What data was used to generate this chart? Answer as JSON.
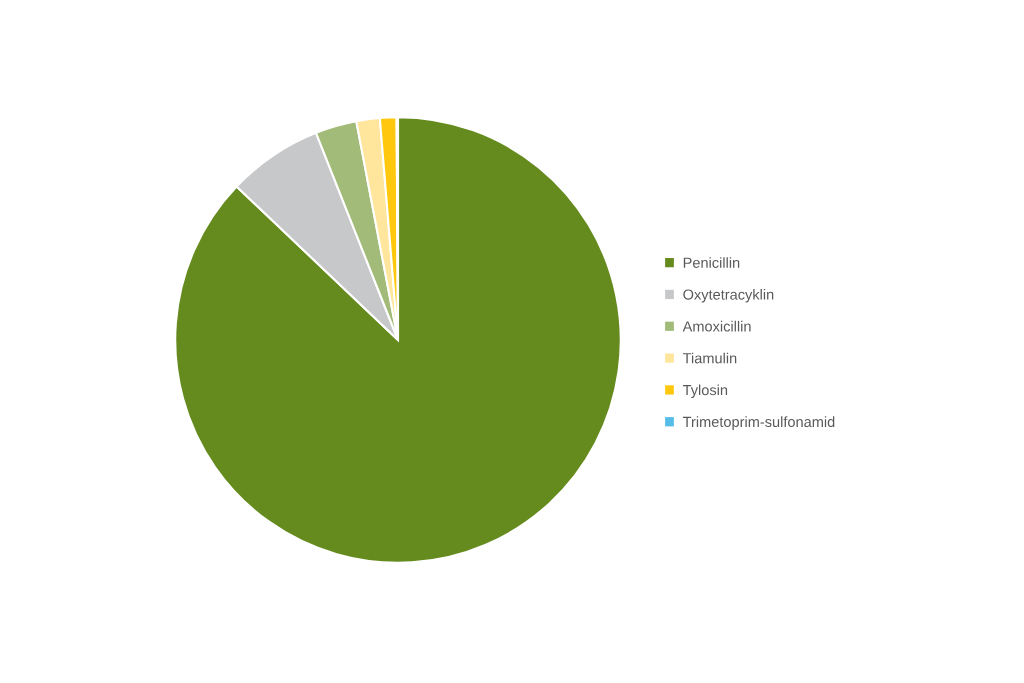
{
  "chart_data": {
    "type": "pie",
    "categories": [
      "Penicillin",
      "Oxytetracyklin",
      "Amoxicillin",
      "Tiamulin",
      "Tylosin",
      "Trimetoprim-sulfonamid"
    ],
    "values": [
      87.1,
      6.9,
      3.0,
      1.7,
      1.2,
      0.1
    ],
    "colors": [
      "#658b1e",
      "#c7c8ca",
      "#a2bb78",
      "#ffe69c",
      "#ffc80f",
      "#55bde8"
    ],
    "legend": "right"
  }
}
